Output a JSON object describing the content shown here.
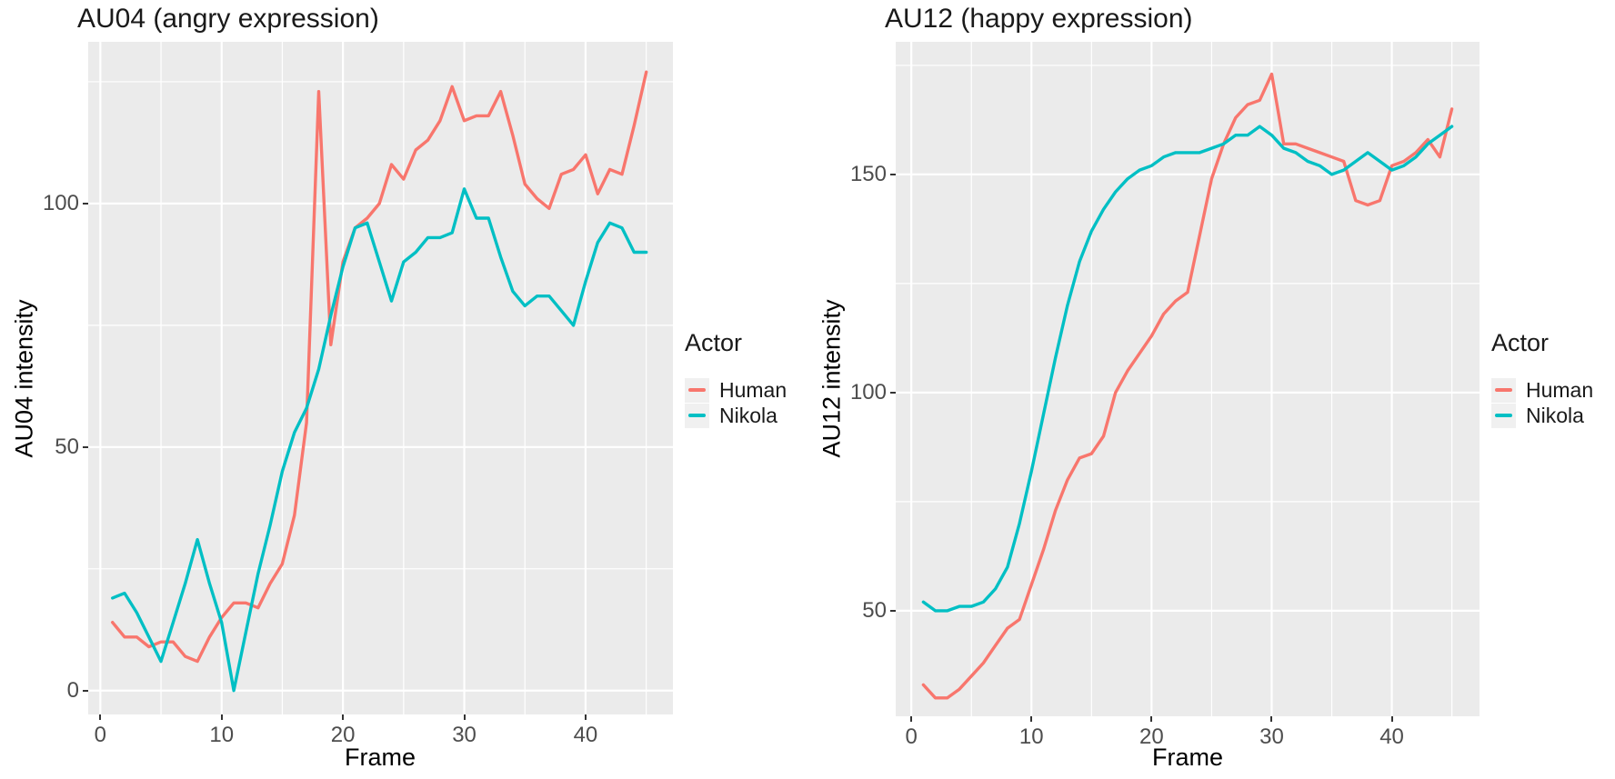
{
  "figure": {
    "background": "#ffffff",
    "panel_background": "#ebebeb",
    "grid_color": "#ffffff",
    "tick_text_color": "#4d4d4d",
    "series_colors": {
      "Human": "#f8766d",
      "Nikola": "#00bfc4"
    }
  },
  "chart_data": [
    {
      "type": "line",
      "title": "AU04 (angry expression)",
      "xlabel": "Frame",
      "ylabel": "AU04 intensity",
      "legend_title": "Actor",
      "legend_position": "right",
      "grid": true,
      "x_first": 1,
      "x_step": 1,
      "xlim": [
        -1,
        47.2
      ],
      "ylim": [
        -4.9,
        133.2
      ],
      "xticks": [
        0,
        10,
        20,
        30,
        40
      ],
      "xminor": [
        5,
        15,
        25,
        35,
        45
      ],
      "yticks": [
        0,
        50,
        100
      ],
      "yminor": [
        25,
        75,
        125
      ],
      "series": [
        {
          "name": "Human",
          "color": "#f8766d",
          "values": [
            14,
            11,
            11,
            9,
            10,
            10,
            7,
            6,
            11,
            15,
            18,
            18,
            17,
            22,
            26,
            36,
            55,
            123,
            71,
            88,
            95,
            97,
            100,
            108,
            105,
            111,
            113,
            117,
            124,
            117,
            118,
            118,
            123,
            114,
            104,
            101,
            99,
            106,
            107,
            110,
            102,
            107,
            106,
            116,
            127
          ]
        },
        {
          "name": "Nikola",
          "color": "#00bfc4",
          "values": [
            19,
            20,
            16,
            11,
            6,
            14,
            22,
            31,
            22,
            14,
            0,
            12,
            24,
            34,
            45,
            53,
            58,
            66,
            77,
            87,
            95,
            96,
            88,
            80,
            88,
            90,
            93,
            93,
            94,
            103,
            97,
            97,
            89,
            82,
            79,
            81,
            81,
            78,
            75,
            84,
            92,
            96,
            95,
            90,
            90
          ]
        }
      ]
    },
    {
      "type": "line",
      "title": "AU12 (happy expression)",
      "xlabel": "Frame",
      "ylabel": "AU12 intensity",
      "legend_title": "Actor",
      "legend_position": "right",
      "grid": true,
      "x_first": 1,
      "x_step": 1,
      "xlim": [
        -1.3,
        47.3
      ],
      "ylim": [
        25.8,
        180.4
      ],
      "xticks": [
        0,
        10,
        20,
        30,
        40
      ],
      "xminor": [
        5,
        15,
        25,
        35,
        45
      ],
      "yticks": [
        50,
        100,
        150
      ],
      "yminor": [
        75,
        125,
        175
      ],
      "series": [
        {
          "name": "Human",
          "color": "#f8766d",
          "values": [
            33,
            30,
            30,
            32,
            35,
            38,
            42,
            46,
            48,
            56,
            64,
            73,
            80,
            85,
            86,
            90,
            100,
            105,
            109,
            113,
            118,
            121,
            123,
            136,
            149,
            157,
            163,
            166,
            167,
            173,
            157,
            157,
            156,
            155,
            154,
            153,
            144,
            143,
            144,
            152,
            153,
            155,
            158,
            154,
            165
          ]
        },
        {
          "name": "Nikola",
          "color": "#00bfc4",
          "values": [
            52,
            50,
            50,
            51,
            51,
            52,
            55,
            60,
            70,
            82,
            95,
            108,
            120,
            130,
            137,
            142,
            146,
            149,
            151,
            152,
            154,
            155,
            155,
            155,
            156,
            157,
            159,
            159,
            161,
            159,
            156,
            155,
            153,
            152,
            150,
            151,
            153,
            155,
            153,
            151,
            152,
            154,
            157,
            159,
            161
          ]
        }
      ]
    }
  ]
}
